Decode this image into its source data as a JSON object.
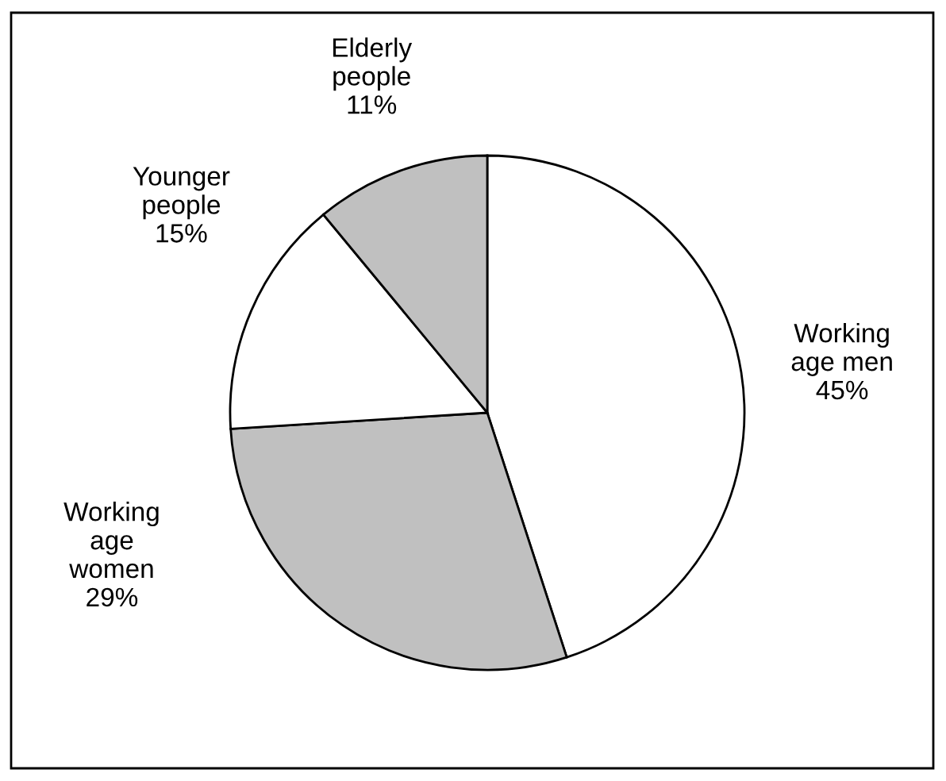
{
  "chart_data": {
    "type": "pie",
    "categories": [
      "Working\nage men",
      "Working\nage\nwomen",
      "Younger\npeople",
      "Elderly\npeople"
    ],
    "values": [
      45,
      29,
      15,
      11
    ],
    "value_labels": [
      "45%",
      "29%",
      "15%",
      "11%"
    ],
    "colors": [
      "#ffffff",
      "#c0c0c0",
      "#ffffff",
      "#c0c0c0"
    ]
  }
}
